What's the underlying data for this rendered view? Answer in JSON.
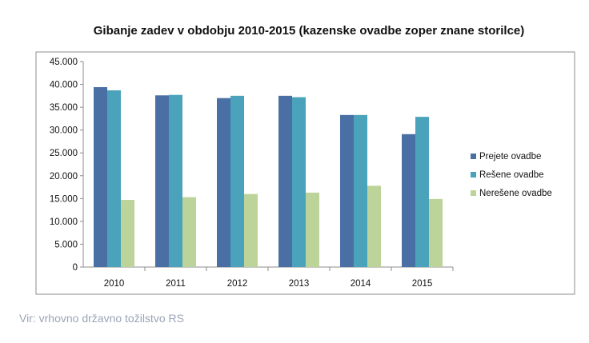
{
  "chart_data": {
    "type": "bar",
    "title": "Gibanje zadev v obdobju 2010-2015 (kazenske ovadbe zoper znane storilce)",
    "categories": [
      "2010",
      "2011",
      "2012",
      "2013",
      "2014",
      "2015"
    ],
    "series": [
      {
        "name": "Prejete ovadbe",
        "color": "#4a6fa5",
        "values": [
          39400,
          37600,
          37000,
          37500,
          33300,
          29100
        ]
      },
      {
        "name": "Rešene ovadbe",
        "color": "#4aa3bb",
        "values": [
          38700,
          37700,
          37500,
          37200,
          33300,
          32900
        ]
      },
      {
        "name": "Nerešene ovadbe",
        "color": "#bcd49a",
        "values": [
          14700,
          15300,
          16000,
          16300,
          17800,
          14900
        ]
      }
    ],
    "ylim": [
      0,
      45000
    ],
    "yticks": [
      "0",
      "5.000",
      "10.000",
      "15.000",
      "20.000",
      "25.000",
      "30.000",
      "35.000",
      "40.000",
      "45.000"
    ],
    "xlabel": "",
    "ylabel": "",
    "legend_position": "right",
    "grid": false
  },
  "source": "Vir: vrhovno državno tožilstvo RS"
}
